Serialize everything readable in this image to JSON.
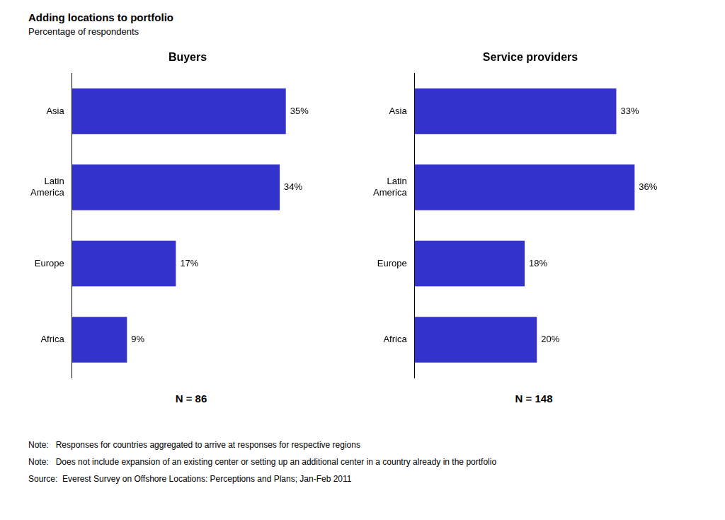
{
  "title": "Adding locations to portfolio",
  "subtitle": "Percentage of respondents",
  "annotations": [
    "Note:   Responses for countries aggregated to arrive at responses for respective regions",
    "Note:   Does not include expansion of an existing center or setting up an additional center in a country already in the portfolio",
    "Source:  Everest Survey on Offshore Locations: Perceptions and Plans; Jan-Feb 2011"
  ],
  "chart_data": [
    {
      "type": "bar",
      "orientation": "horizontal",
      "title": "Buyers",
      "categories": [
        "Asia",
        "Latin\nAmerica",
        "Europe",
        "Africa"
      ],
      "values": [
        35,
        34,
        17,
        9
      ],
      "value_labels": [
        "35%",
        "34%",
        "17%",
        "9%"
      ],
      "data_labels": true,
      "color": "#3333CC",
      "xlim": [
        0,
        45
      ],
      "grid": false,
      "tick_labels": "y",
      "annotations": [
        "N = 86"
      ]
    },
    {
      "type": "bar",
      "orientation": "horizontal",
      "title": "Service providers",
      "categories": [
        "Asia",
        "Latin\nAmerica",
        "Europe",
        "Africa"
      ],
      "values": [
        33,
        36,
        18,
        20
      ],
      "value_labels": [
        "33%",
        "36%",
        "18%",
        "20%"
      ],
      "data_labels": true,
      "color": "#3333CC",
      "xlim": [
        0,
        45
      ],
      "grid": false,
      "tick_labels": "y",
      "annotations": [
        "N = 148"
      ]
    }
  ]
}
